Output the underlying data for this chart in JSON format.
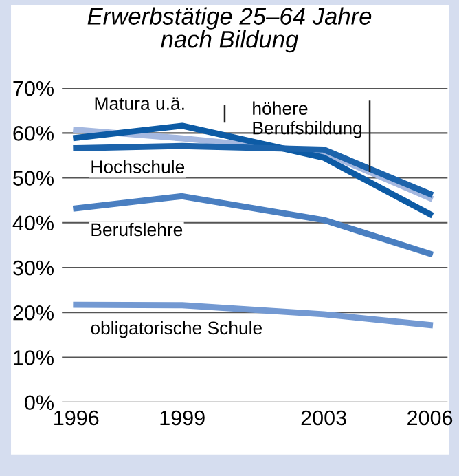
{
  "chart_data": {
    "type": "line",
    "title": "Erwerbstätige 25–64 Jahre\nnach Bildung",
    "x": [
      1996,
      1999,
      2003,
      2006
    ],
    "series": [
      {
        "name": "höhere Berufsbildung",
        "color": "#a4b8e0",
        "values": [
          60.7,
          58.8,
          55.7,
          45.5
        ]
      },
      {
        "name": "Matura u.ä.",
        "color": "#0d5ba5",
        "values": [
          58.9,
          61.6,
          54.5,
          41.9
        ]
      },
      {
        "name": "Hochschule",
        "color": "#1c63ab",
        "values": [
          56.6,
          57.1,
          56.3,
          46.4
        ]
      },
      {
        "name": "Berufslehre",
        "color": "#4a7fc1",
        "values": [
          43.2,
          45.9,
          40.6,
          33.1
        ]
      },
      {
        "name": "obligatorische Schule",
        "color": "#7399d2",
        "values": [
          21.7,
          21.6,
          19.6,
          17.2
        ]
      }
    ],
    "xlim": [
      1995.6,
      2006.5
    ],
    "ylim": [
      0,
      70
    ],
    "xticks": [
      1996,
      1999,
      2003,
      2006
    ],
    "yticks": [
      {
        "value": 0,
        "label": "0%"
      },
      {
        "value": 10,
        "label": "10%"
      },
      {
        "value": 20,
        "label": "20%"
      },
      {
        "value": 30,
        "label": "30%"
      },
      {
        "value": 40,
        "label": "40%"
      },
      {
        "value": 50,
        "label": "50%"
      },
      {
        "value": 60,
        "label": "60%"
      },
      {
        "value": 70,
        "label": "70%"
      }
    ],
    "grid": "y",
    "marker": "none",
    "line_style": "solid",
    "legend": false
  }
}
